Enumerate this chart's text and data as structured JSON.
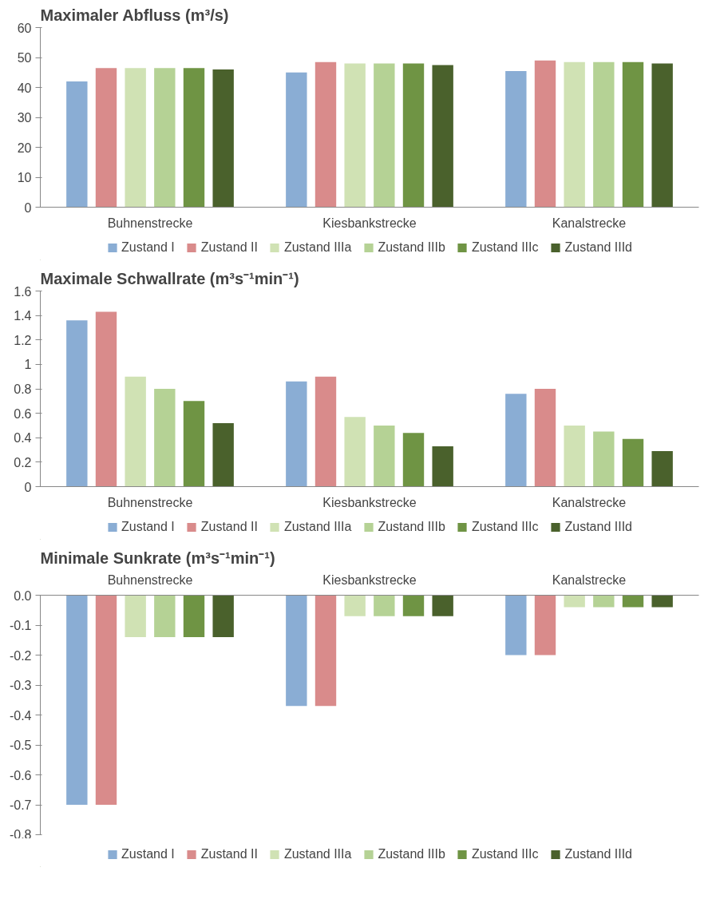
{
  "chart_data": [
    {
      "type": "bar",
      "title": "Maximaler Abfluss (m³/s)",
      "categories": [
        "Buhnenstrecke",
        "Kiesbankstrecke",
        "Kanalstrecke"
      ],
      "ylim": [
        0,
        60
      ],
      "yticks": [
        0,
        10,
        20,
        30,
        40,
        50,
        60
      ],
      "grid": false,
      "legend": "bottom",
      "series": [
        {
          "name": "Zustand I",
          "color": "#8aadd4",
          "values": [
            42,
            45,
            45.5
          ]
        },
        {
          "name": "Zustand II",
          "color": "#d98b8b",
          "values": [
            46.5,
            48.5,
            49
          ]
        },
        {
          "name": "Zustand IIIa",
          "color": "#d0e2b4",
          "values": [
            46.5,
            48,
            48.5
          ]
        },
        {
          "name": "Zustand IIIb",
          "color": "#b5d295",
          "values": [
            46.5,
            48,
            48.5
          ]
        },
        {
          "name": "Zustand IIIc",
          "color": "#6f9444",
          "values": [
            46.5,
            48,
            48.5
          ]
        },
        {
          "name": "Zustand IIId",
          "color": "#4a612c",
          "values": [
            46,
            47.5,
            48
          ]
        }
      ]
    },
    {
      "type": "bar",
      "title": "Maximale Schwallrate (m³s⁻¹min⁻¹)",
      "categories": [
        "Buhnenstrecke",
        "Kiesbankstrecke",
        "Kanalstrecke"
      ],
      "ylim": [
        0,
        1.6
      ],
      "yticks": [
        0,
        0.2,
        0.4,
        0.6,
        0.8,
        1,
        1.2,
        1.4,
        1.6
      ],
      "grid": false,
      "legend": "bottom",
      "series": [
        {
          "name": "Zustand I",
          "color": "#8aadd4",
          "values": [
            1.36,
            0.86,
            0.76
          ]
        },
        {
          "name": "Zustand II",
          "color": "#d98b8b",
          "values": [
            1.43,
            0.9,
            0.8
          ]
        },
        {
          "name": "Zustand IIIa",
          "color": "#d0e2b4",
          "values": [
            0.9,
            0.57,
            0.5
          ]
        },
        {
          "name": "Zustand IIIb",
          "color": "#b5d295",
          "values": [
            0.8,
            0.5,
            0.45
          ]
        },
        {
          "name": "Zustand IIIc",
          "color": "#6f9444",
          "values": [
            0.7,
            0.44,
            0.39
          ]
        },
        {
          "name": "Zustand IIId",
          "color": "#4a612c",
          "values": [
            0.52,
            0.33,
            0.29
          ]
        }
      ]
    },
    {
      "type": "bar",
      "title": "Minimale Sunkrate (m³s⁻¹min⁻¹)",
      "categories": [
        "Buhnenstrecke",
        "Kiesbankstrecke",
        "Kanalstrecke"
      ],
      "ylim": [
        -0.8,
        0
      ],
      "yticks": [
        {
          "value": 0,
          "label": "0.0"
        },
        -0.1,
        -0.2,
        -0.3,
        -0.4,
        -0.5,
        -0.6,
        -0.7,
        -0.8
      ],
      "grid": false,
      "legend": "bottom",
      "series": [
        {
          "name": "Zustand I",
          "color": "#8aadd4",
          "values": [
            -0.7,
            -0.37,
            -0.2
          ]
        },
        {
          "name": "Zustand II",
          "color": "#d98b8b",
          "values": [
            -0.7,
            -0.37,
            -0.2
          ]
        },
        {
          "name": "Zustand IIIa",
          "color": "#d0e2b4",
          "values": [
            -0.14,
            -0.07,
            -0.04
          ]
        },
        {
          "name": "Zustand IIIb",
          "color": "#b5d295",
          "values": [
            -0.14,
            -0.07,
            -0.04
          ]
        },
        {
          "name": "Zustand IIIc",
          "color": "#6f9444",
          "values": [
            -0.14,
            -0.07,
            -0.04
          ]
        },
        {
          "name": "Zustand IIId",
          "color": "#4a612c",
          "values": [
            -0.14,
            -0.07,
            -0.04
          ]
        }
      ]
    }
  ]
}
